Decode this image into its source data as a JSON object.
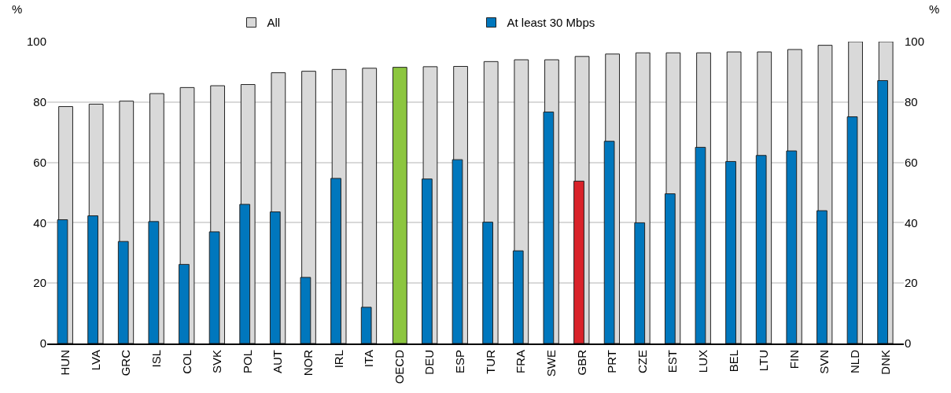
{
  "chart_data": {
    "type": "bar",
    "categories": [
      "HUN",
      "LVA",
      "GRC",
      "ISL",
      "COL",
      "SVK",
      "POL",
      "AUT",
      "NOR",
      "IRL",
      "ITA",
      "OECD",
      "DEU",
      "ESP",
      "TUR",
      "FRA",
      "SWE",
      "GBR",
      "PRT",
      "CZE",
      "EST",
      "LUX",
      "BEL",
      "LTU",
      "FIN",
      "SVN",
      "NLD",
      "DNK"
    ],
    "series": [
      {
        "name": "All",
        "colors": [
          "#d9d9d9",
          "#d9d9d9",
          "#d9d9d9",
          "#d9d9d9",
          "#d9d9d9",
          "#d9d9d9",
          "#d9d9d9",
          "#d9d9d9",
          "#d9d9d9",
          "#d9d9d9",
          "#d9d9d9",
          "#8cc63f",
          "#d9d9d9",
          "#d9d9d9",
          "#d9d9d9",
          "#d9d9d9",
          "#d9d9d9",
          "#d9d9d9",
          "#d9d9d9",
          "#d9d9d9",
          "#d9d9d9",
          "#d9d9d9",
          "#d9d9d9",
          "#d9d9d9",
          "#d9d9d9",
          "#d9d9d9",
          "#d9d9d9",
          "#d9d9d9"
        ],
        "values": [
          78.5,
          79.3,
          80.3,
          82.8,
          84.8,
          85.4,
          85.8,
          89.7,
          90.2,
          90.8,
          91.2,
          91.5,
          91.7,
          91.8,
          93.4,
          94.0,
          94.0,
          95.1,
          95.9,
          96.3,
          96.3,
          96.3,
          96.6,
          96.6,
          97.4,
          98.8,
          100,
          100
        ]
      },
      {
        "name": "At least 30 Mbps",
        "colors": [
          "#0077bd",
          "#0077bd",
          "#0077bd",
          "#0077bd",
          "#0077bd",
          "#0077bd",
          "#0077bd",
          "#0077bd",
          "#0077bd",
          "#0077bd",
          "#0077bd",
          "#0077bd",
          "#0077bd",
          "#0077bd",
          "#0077bd",
          "#0077bd",
          "#0077bd",
          "#d9232a",
          "#0077bd",
          "#0077bd",
          "#0077bd",
          "#0077bd",
          "#0077bd",
          "#0077bd",
          "#0077bd",
          "#0077bd",
          "#0077bd",
          "#0077bd"
        ],
        "values": [
          41.0,
          42.3,
          33.8,
          40.4,
          26.2,
          37.0,
          46.1,
          43.6,
          21.9,
          54.7,
          12.0,
          null,
          54.5,
          60.9,
          40.2,
          30.7,
          76.7,
          53.8,
          67.0,
          40.0,
          49.6,
          65.0,
          60.3,
          62.3,
          63.8,
          44.0,
          75.1,
          87.1
        ]
      }
    ],
    "ylabel": "%",
    "y2label": "%",
    "ylim": [
      0,
      100
    ],
    "yticks": [
      0,
      20,
      40,
      60,
      80,
      100
    ],
    "y2lim": [
      0,
      100
    ],
    "y2ticks": [
      0,
      20,
      40,
      60,
      80,
      100
    ],
    "grid": "y",
    "legend": "top"
  }
}
